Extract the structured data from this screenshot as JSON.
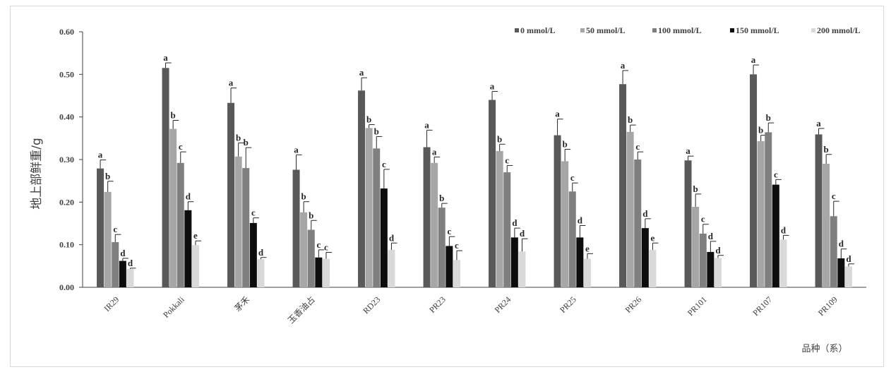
{
  "chart_data": {
    "type": "bar",
    "ylabel": "地上部鲜重/g",
    "xlabel": "品种（系）",
    "ylim": [
      0,
      0.6
    ],
    "yticks": [
      "0.00",
      "0.10",
      "0.20",
      "0.30",
      "0.40",
      "0.50",
      "0.60"
    ],
    "legend_position": "top-right",
    "categories": [
      "IR29",
      "Pokkali",
      "茅禾",
      "玉香油占",
      "RD23",
      "PR23",
      "PR24",
      "PR25",
      "PR26",
      "PR101",
      "PR107",
      "PR109"
    ],
    "series": [
      {
        "name": "0 mmol/L",
        "color": "#595959",
        "values": [
          0.279,
          0.515,
          0.433,
          0.276,
          0.462,
          0.329,
          0.44,
          0.357,
          0.477,
          0.298,
          0.5,
          0.359
        ],
        "errors": [
          0.02,
          0.012,
          0.035,
          0.035,
          0.03,
          0.04,
          0.02,
          0.038,
          0.032,
          0.01,
          0.022,
          0.014
        ],
        "letters": [
          "a",
          "a",
          "a",
          "a",
          "a",
          "a",
          "a",
          "a",
          "a",
          "a",
          "a",
          "a"
        ]
      },
      {
        "name": "50 mmol/L",
        "color": "#a6a6a6",
        "values": [
          0.224,
          0.372,
          0.307,
          0.176,
          0.374,
          0.292,
          0.32,
          0.296,
          0.365,
          0.189,
          0.343,
          0.29
        ],
        "errors": [
          0.025,
          0.02,
          0.032,
          0.025,
          0.008,
          0.014,
          0.016,
          0.028,
          0.016,
          0.03,
          0.014,
          0.022
        ],
        "letters": [
          "b",
          "b",
          "b",
          "b",
          "b",
          "a",
          "b",
          "b",
          "b",
          "b",
          "b",
          "b"
        ]
      },
      {
        "name": "100 mmol/L",
        "color": "#7f7f7f",
        "values": [
          0.106,
          0.292,
          0.28,
          0.135,
          0.326,
          0.187,
          0.27,
          0.225,
          0.3,
          0.126,
          0.364,
          0.167
        ],
        "errors": [
          0.018,
          0.026,
          0.048,
          0.022,
          0.028,
          0.01,
          0.016,
          0.02,
          0.018,
          0.022,
          0.022,
          0.035
        ],
        "letters": [
          "c",
          "c",
          "b",
          "b",
          "b",
          "b",
          "c",
          "c",
          "c",
          "c",
          "b",
          "c"
        ]
      },
      {
        "name": "150 mmol/L",
        "color": "#0d0d0d",
        "values": [
          0.062,
          0.181,
          0.151,
          0.07,
          0.232,
          0.097,
          0.117,
          0.117,
          0.139,
          0.083,
          0.241,
          0.068
        ],
        "errors": [
          0.006,
          0.02,
          0.012,
          0.018,
          0.045,
          0.022,
          0.022,
          0.028,
          0.022,
          0.025,
          0.012,
          0.022
        ],
        "letters": [
          "d",
          "d",
          "c",
          "c",
          "c",
          "c",
          "d",
          "d",
          "d",
          "d",
          "c",
          "d"
        ]
      },
      {
        "name": "200 mmol/L",
        "color": "#d9d9d9",
        "values": [
          0.043,
          0.099,
          0.066,
          0.067,
          0.088,
          0.064,
          0.084,
          0.067,
          0.088,
          0.069,
          0.112,
          0.049
        ],
        "errors": [
          0.002,
          0.01,
          0.004,
          0.015,
          0.016,
          0.022,
          0.03,
          0.012,
          0.016,
          0.006,
          0.01,
          0.006
        ],
        "letters": [
          "d",
          "e",
          "d",
          "c",
          "d",
          "c",
          "d",
          "e",
          "e",
          "d",
          "d",
          "d"
        ]
      }
    ]
  }
}
